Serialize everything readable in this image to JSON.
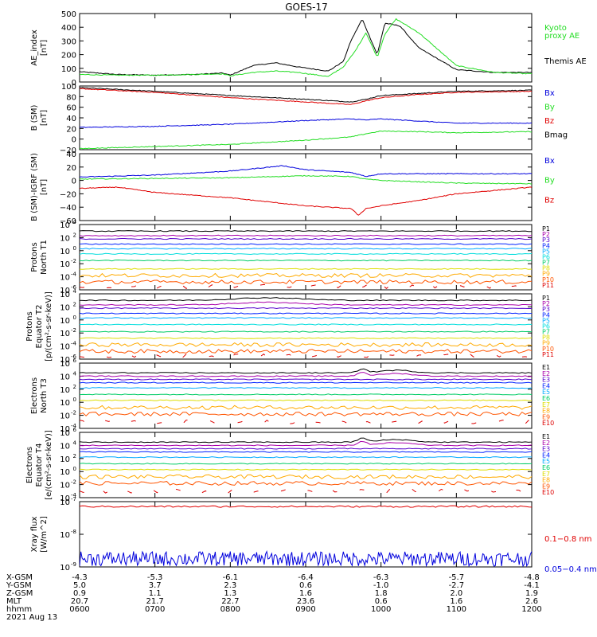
{
  "title": "GOES-17",
  "colors": {
    "black": "#000000",
    "red": "#e00000",
    "green": "#22dd22",
    "blue": "#0000dd",
    "channels": [
      "#000000",
      "#aa00aa",
      "#5500cc",
      "#0022ff",
      "#00aaff",
      "#00dddd",
      "#00cc66",
      "#dddd00",
      "#ffaa00",
      "#ff5500",
      "#dd0000"
    ]
  },
  "time_axis": {
    "ticks": [
      "0600",
      "0700",
      "0800",
      "0900",
      "1000",
      "1100",
      "1200"
    ],
    "range": [
      "0600",
      "1200"
    ]
  },
  "footer": {
    "rows": [
      {
        "label": "X-GSM",
        "values": [
          "-4.3",
          "-5.3",
          "-6.1",
          "-6.4",
          "-6.3",
          "-5.7",
          "-4.8"
        ]
      },
      {
        "label": "Y-GSM",
        "values": [
          "5.0",
          "3.7",
          "2.3",
          "0.6",
          "-1.0",
          "-2.7",
          "-4.1"
        ]
      },
      {
        "label": "Z-GSM",
        "values": [
          "0.9",
          "1.1",
          "1.3",
          "1.6",
          "1.8",
          "2.0",
          "1.9"
        ]
      },
      {
        "label": "MLT",
        "values": [
          "20.7",
          "21.7",
          "22.7",
          "23.6",
          "0.6",
          "1.6",
          "2.6"
        ]
      },
      {
        "label": "hhmm",
        "values": [
          "0600",
          "0700",
          "0800",
          "0900",
          "1000",
          "1100",
          "1200"
        ]
      }
    ],
    "date": "2021 Aug 13"
  },
  "chart_data": [
    {
      "type": "line",
      "ylabel": [
        "AE_index",
        "[nT]"
      ],
      "yticks": [
        "500",
        "400",
        "300",
        "200",
        "100",
        "0"
      ],
      "ylim": [
        0,
        500
      ],
      "legend": [
        {
          "text": "Kyoto",
          "color": "green"
        },
        {
          "text": "proxy AE",
          "color": "green"
        },
        {
          "text": "Themis AE",
          "color": "black"
        }
      ],
      "series": [
        {
          "name": "Themis AE",
          "color": "black",
          "x": [
            6.0,
            6.5,
            7.0,
            7.5,
            7.9,
            8.0,
            8.3,
            8.6,
            8.9,
            9.3,
            9.5,
            9.6,
            9.75,
            9.95,
            10.05,
            10.25,
            10.5,
            11.0,
            11.5,
            12.0
          ],
          "y": [
            75,
            55,
            50,
            55,
            65,
            50,
            120,
            140,
            110,
            80,
            150,
            300,
            460,
            200,
            430,
            410,
            250,
            90,
            70,
            70
          ]
        },
        {
          "name": "Kyoto proxy AE",
          "color": "green",
          "x": [
            6.0,
            6.5,
            7.0,
            7.5,
            7.9,
            8.0,
            8.3,
            8.6,
            8.9,
            9.3,
            9.5,
            9.65,
            9.8,
            9.95,
            10.05,
            10.2,
            10.5,
            11.0,
            11.5,
            12.0
          ],
          "y": [
            55,
            50,
            50,
            55,
            60,
            45,
            70,
            80,
            70,
            40,
            110,
            220,
            360,
            180,
            350,
            460,
            360,
            120,
            70,
            60
          ]
        }
      ]
    },
    {
      "type": "line",
      "ylabel": [
        "B (SM)",
        "[nT]"
      ],
      "yticks": [
        "100",
        "80",
        "60",
        "40",
        "20",
        "0",
        "−20"
      ],
      "ylim": [
        -20,
        100
      ],
      "legend": [
        {
          "text": "Bx",
          "color": "blue"
        },
        {
          "text": "By",
          "color": "green"
        },
        {
          "text": "Bz",
          "color": "red"
        },
        {
          "text": "Bmag",
          "color": "black"
        }
      ],
      "series": [
        {
          "name": "Bmag",
          "color": "black",
          "x": [
            6.0,
            7.0,
            8.0,
            9.0,
            9.6,
            9.8,
            10.0,
            10.5,
            11.0,
            12.0
          ],
          "y": [
            97,
            90,
            82,
            75,
            70,
            75,
            82,
            86,
            90,
            92
          ]
        },
        {
          "name": "Bz",
          "color": "red",
          "x": [
            6.0,
            7.0,
            8.0,
            9.0,
            9.6,
            9.8,
            10.0,
            10.5,
            11.0,
            12.0
          ],
          "y": [
            95,
            88,
            78,
            70,
            65,
            72,
            78,
            84,
            88,
            90
          ]
        },
        {
          "name": "Bx",
          "color": "blue",
          "x": [
            6.0,
            7.0,
            8.0,
            9.0,
            9.6,
            9.8,
            10.0,
            10.5,
            11.0,
            12.0
          ],
          "y": [
            22,
            24,
            28,
            35,
            38,
            36,
            38,
            34,
            30,
            30
          ]
        },
        {
          "name": "By",
          "color": "green",
          "x": [
            6.0,
            7.0,
            8.0,
            9.0,
            9.6,
            9.8,
            10.0,
            10.5,
            11.0,
            12.0
          ],
          "y": [
            -18,
            -14,
            -10,
            -2,
            4,
            10,
            15,
            14,
            12,
            14
          ]
        }
      ]
    },
    {
      "type": "line",
      "ylabel": [
        "B (SM)-IGRF (SM)",
        "[nT]"
      ],
      "yticks": [
        "40",
        "20",
        "0",
        "−20",
        "−40",
        "−60"
      ],
      "ylim": [
        -60,
        40
      ],
      "legend": [
        {
          "text": "Bx",
          "color": "blue"
        },
        {
          "text": "By",
          "color": "green"
        },
        {
          "text": "Bz",
          "color": "red"
        }
      ],
      "series": [
        {
          "name": "Bx",
          "color": "blue",
          "x": [
            6.0,
            7.0,
            8.0,
            8.7,
            9.0,
            9.6,
            9.8,
            10.0,
            10.5,
            11.0,
            12.0
          ],
          "y": [
            5,
            8,
            14,
            22,
            16,
            12,
            6,
            10,
            10,
            10,
            10
          ]
        },
        {
          "name": "By",
          "color": "green",
          "x": [
            6.0,
            7.0,
            8.0,
            9.0,
            9.6,
            9.8,
            10.0,
            10.5,
            11.0,
            12.0
          ],
          "y": [
            2,
            3,
            4,
            7,
            6,
            2,
            0,
            -2,
            -4,
            -5
          ]
        },
        {
          "name": "Bz",
          "color": "red",
          "x": [
            6.0,
            6.5,
            7.0,
            8.0,
            9.0,
            9.6,
            9.7,
            9.8,
            10.0,
            10.5,
            11.0,
            12.0
          ],
          "y": [
            -12,
            -10,
            -18,
            -26,
            -38,
            -42,
            -52,
            -42,
            -38,
            -30,
            -20,
            -10
          ]
        }
      ]
    },
    {
      "type": "line",
      "log": true,
      "ylabel": [
        "Protons",
        "North T1"
      ],
      "yticks": [
        "10^4",
        "10^2",
        "10^0",
        "10^-2",
        "10^-4",
        "10^-6"
      ],
      "ylim": [
        -6,
        4
      ],
      "channels": [
        "P1",
        "P2",
        "P3",
        "P4",
        "P5",
        "P6",
        "P7",
        "P8",
        "P9",
        "P10",
        "P11"
      ],
      "levels": [
        3.0,
        2.3,
        1.8,
        1.0,
        0.3,
        -0.5,
        -1.5,
        -2.8,
        -3.8,
        -4.8,
        -5.5
      ]
    },
    {
      "type": "line",
      "log": true,
      "ylabel": [
        "Protons",
        "Equator T2",
        "[p/(cm²-s-sr-keV)]"
      ],
      "yticks": [
        "10^4",
        "10^2",
        "10^0",
        "10^-2",
        "10^-4",
        "10^-6"
      ],
      "ylim": [
        -6,
        4
      ],
      "channels": [
        "P1",
        "P2",
        "P3",
        "P4",
        "P5",
        "P6",
        "P7",
        "P8",
        "P9",
        "P10",
        "P11"
      ],
      "levels": [
        3.0,
        2.3,
        1.8,
        1.0,
        0.3,
        -0.7,
        -1.8,
        -2.8,
        -3.8,
        -4.8,
        -5.5
      ]
    },
    {
      "type": "line",
      "log": true,
      "ylabel": [
        "Electrons",
        "North T3"
      ],
      "yticks": [
        "10^6",
        "10^4",
        "10^2",
        "10^0",
        "10^-2",
        "10^-4"
      ],
      "ylim": [
        -4,
        6
      ],
      "channels": [
        "E1",
        "E2",
        "E3",
        "E4",
        "E5",
        "E6",
        "E7",
        "E8",
        "E9",
        "E10"
      ],
      "levels": [
        4.5,
        4.0,
        3.5,
        3.0,
        2.2,
        1.2,
        0.3,
        -0.8,
        -1.8,
        -3.0
      ]
    },
    {
      "type": "line",
      "log": true,
      "ylabel": [
        "Electrons",
        "Equator T4",
        "[e/(cm²-s-sr-keV)]"
      ],
      "yticks": [
        "10^6",
        "10^4",
        "10^2",
        "10^0",
        "10^-2",
        "10^-4"
      ],
      "ylim": [
        -4,
        6
      ],
      "channels": [
        "E1",
        "E2",
        "E3",
        "E4",
        "E5",
        "E6",
        "E7",
        "E8",
        "E9",
        "E10"
      ],
      "levels": [
        4.5,
        4.0,
        3.5,
        3.0,
        2.2,
        1.2,
        0.3,
        -0.8,
        -1.8,
        -3.0
      ]
    },
    {
      "type": "line",
      "log": true,
      "ylabel": [
        "Xray flux",
        "[W/m^2]"
      ],
      "yticks": [
        "10^-7",
        "10^-8",
        "10^-9"
      ],
      "ylim": [
        -9,
        -7
      ],
      "legend": [
        {
          "text": "0.1−0.8 nm",
          "color": "red"
        },
        {
          "text": "0.05−0.4 nm",
          "color": "blue"
        }
      ],
      "series": [
        {
          "name": "0.1−0.8 nm",
          "color": "red",
          "level": -7.15
        },
        {
          "name": "0.05−0.4 nm",
          "color": "blue",
          "level": -8.75
        }
      ]
    }
  ]
}
